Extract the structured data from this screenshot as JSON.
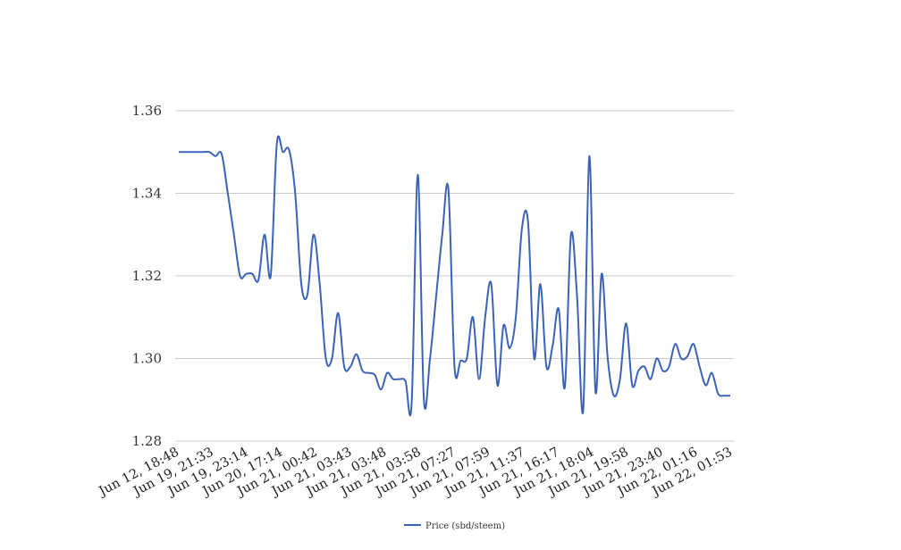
{
  "chart_data": {
    "type": "line",
    "title": "",
    "xlabel": "",
    "ylabel": "",
    "ylim": [
      1.28,
      1.36
    ],
    "y_ticks": [
      "1.28",
      "1.30",
      "1.32",
      "1.34",
      "1.36"
    ],
    "grid": true,
    "legend_position": "bottom",
    "x_tick_labels": [
      "Jun 12, 18:48",
      "Jun 19, 21:33",
      "Jun 19, 23:14",
      "Jun 20, 17:14",
      "Jun 21, 00:42",
      "Jun 21, 03:43",
      "Jun 21, 03:48",
      "Jun 21, 03:58",
      "Jun 21, 07:27",
      "Jun 21, 07:59",
      "Jun 21, 11:37",
      "Jun 21, 16:17",
      "Jun 21, 18:04",
      "Jun 21, 19:58",
      "Jun 21, 23:40",
      "Jun 22, 01:16",
      "Jun 22, 01:53"
    ],
    "series": [
      {
        "name": "Price (sbd/steem)",
        "color": "#3a63b8",
        "values": [
          1.35,
          1.35,
          1.35,
          1.35,
          1.35,
          1.35,
          1.349,
          1.3495,
          1.34,
          1.33,
          1.32,
          1.3205,
          1.3205,
          1.319,
          1.33,
          1.32,
          1.352,
          1.35,
          1.3505,
          1.34,
          1.318,
          1.3155,
          1.33,
          1.318,
          1.3,
          1.3,
          1.311,
          1.298,
          1.298,
          1.301,
          1.297,
          1.2965,
          1.296,
          1.2925,
          1.2965,
          1.295,
          1.295,
          1.2945,
          1.289,
          1.3445,
          1.29,
          1.3,
          1.315,
          1.33,
          1.341,
          1.298,
          1.2995,
          1.3,
          1.31,
          1.295,
          1.31,
          1.318,
          1.2935,
          1.308,
          1.3025,
          1.31,
          1.3315,
          1.333,
          1.3,
          1.318,
          1.298,
          1.303,
          1.312,
          1.293,
          1.33,
          1.315,
          1.2875,
          1.349,
          1.292,
          1.3205,
          1.3,
          1.291,
          1.295,
          1.3085,
          1.2935,
          1.297,
          1.298,
          1.295,
          1.3,
          1.297,
          1.298,
          1.3035,
          1.3,
          1.3005,
          1.3035,
          1.298,
          1.2935,
          1.2965,
          1.2915,
          1.291,
          1.291
        ]
      }
    ]
  }
}
